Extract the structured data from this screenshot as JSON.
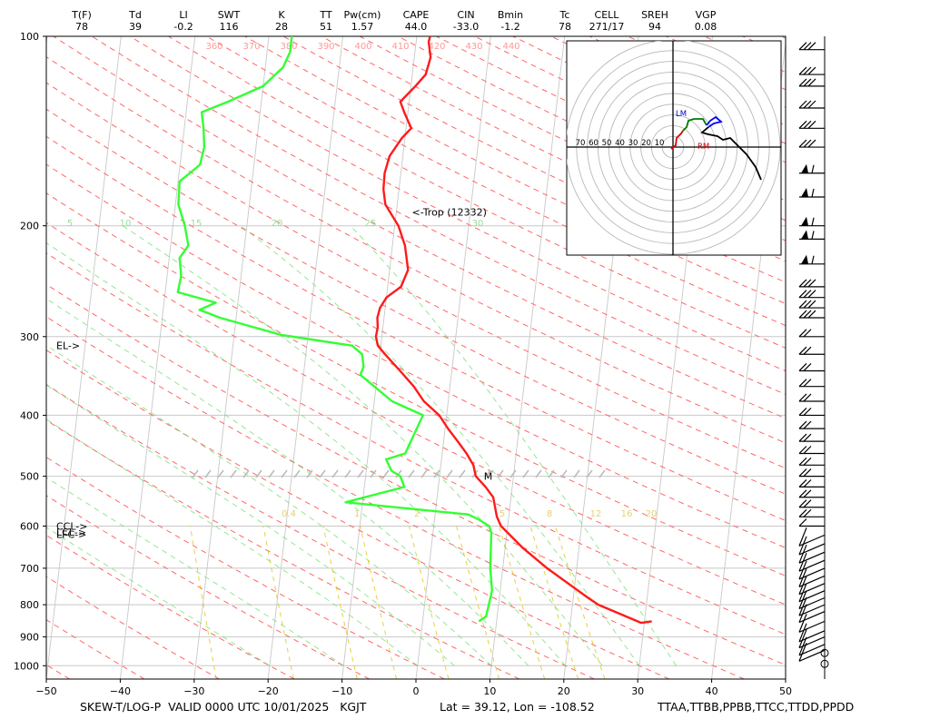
{
  "indices": [
    {
      "label": "T(F)",
      "value": "78"
    },
    {
      "label": "Td",
      "value": "39"
    },
    {
      "label": "LI",
      "value": "-0.2"
    },
    {
      "label": "SWT",
      "value": "116"
    },
    {
      "label": "K",
      "value": "28"
    },
    {
      "label": "TT",
      "value": "51"
    },
    {
      "label": "Pw(cm)",
      "value": "1.57"
    },
    {
      "label": "CAPE",
      "value": "44.0"
    },
    {
      "label": "CIN",
      "value": "-33.0"
    },
    {
      "label": "Bmin",
      "value": "-1.2"
    },
    {
      "label": "Tc",
      "value": "78"
    },
    {
      "label": "CELL",
      "value": "271/17"
    },
    {
      "label": "SREH",
      "value": "94"
    },
    {
      "label": "VGP",
      "value": "0.08"
    }
  ],
  "footer": {
    "left": "SKEW-T/LOG-P  VALID 0000 UTC 10/01/2025   KGJT",
    "location": "Lat = 39.12, Lon = -108.52",
    "sources": "TTAA,TTBB,PPBB,TTCC,TTDD,PPDD"
  },
  "chart_data": {
    "type": "line",
    "title": "",
    "xlabel": "",
    "ylabel": "",
    "xlim": [
      -50,
      50
    ],
    "ylim": [
      1050,
      100
    ],
    "y_scale": "log",
    "grid": true,
    "x_ticks": [
      "-50",
      "-40",
      "-30",
      "-20",
      "-10",
      "0",
      "10",
      "20",
      "30",
      "40",
      "50"
    ],
    "y_ticks": [
      "100",
      "200",
      "300",
      "400",
      "500",
      "600",
      "700",
      "800",
      "900",
      "1000"
    ],
    "series": [
      {
        "id": "temperature",
        "color": "#ff1a1a",
        "points": [
          [
            850,
            31.0
          ],
          [
            855,
            29.6
          ],
          [
            800,
            23.5
          ],
          [
            780,
            22.0
          ],
          [
            700,
            16.0
          ],
          [
            650,
            12.4
          ],
          [
            600,
            9.1
          ],
          [
            580,
            8.4
          ],
          [
            560,
            8.0
          ],
          [
            540,
            7.6
          ],
          [
            520,
            6.4
          ],
          [
            500,
            4.9
          ],
          [
            480,
            4.4
          ],
          [
            460,
            3.3
          ],
          [
            440,
            1.9
          ],
          [
            420,
            0.4
          ],
          [
            400,
            -1.0
          ],
          [
            380,
            -3.3
          ],
          [
            360,
            -4.9
          ],
          [
            340,
            -7.0
          ],
          [
            320,
            -9.3
          ],
          [
            310,
            -10.4
          ],
          [
            300,
            -10.8
          ],
          [
            290,
            -10.7
          ],
          [
            280,
            -10.9
          ],
          [
            270,
            -10.7
          ],
          [
            260,
            -10.0
          ],
          [
            250,
            -8.2
          ],
          [
            235,
            -7.5
          ],
          [
            215,
            -8.3
          ],
          [
            200,
            -9.5
          ],
          [
            185,
            -11.6
          ],
          [
            175,
            -12.1
          ],
          [
            165,
            -12.2
          ],
          [
            155,
            -11.8
          ],
          [
            145,
            -10.4
          ],
          [
            140,
            -9.3
          ],
          [
            132,
            -10.5
          ],
          [
            127,
            -11.2
          ],
          [
            120,
            -9.4
          ],
          [
            115,
            -8.2
          ],
          [
            108,
            -7.8
          ],
          [
            102,
            -8.3
          ],
          [
            100,
            -8.2
          ]
        ]
      },
      {
        "id": "dewpoint",
        "color": "#33ff33",
        "points": [
          [
            850,
            7.6
          ],
          [
            835,
            8.5
          ],
          [
            760,
            8.9
          ],
          [
            700,
            8.3
          ],
          [
            615,
            7.9
          ],
          [
            600,
            7.5
          ],
          [
            585,
            5.9
          ],
          [
            575,
            4.5
          ],
          [
            550,
            -12.3
          ],
          [
            520,
            -4.6
          ],
          [
            500,
            -5.3
          ],
          [
            490,
            -6.6
          ],
          [
            470,
            -7.5
          ],
          [
            460,
            -5.0
          ],
          [
            400,
            -3.2
          ],
          [
            380,
            -7.6
          ],
          [
            345,
            -12.3
          ],
          [
            335,
            -12.0
          ],
          [
            320,
            -12.4
          ],
          [
            310,
            -13.9
          ],
          [
            298,
            -23.7
          ],
          [
            280,
            -32.2
          ],
          [
            272,
            -35.1
          ],
          [
            265,
            -33.0
          ],
          [
            255,
            -38.3
          ],
          [
            240,
            -38.1
          ],
          [
            225,
            -38.6
          ],
          [
            215,
            -37.6
          ],
          [
            200,
            -38.4
          ],
          [
            185,
            -39.6
          ],
          [
            170,
            -39.8
          ],
          [
            160,
            -37.3
          ],
          [
            150,
            -37.0
          ],
          [
            140,
            -37.4
          ],
          [
            132,
            -37.9
          ],
          [
            127,
            -34.5
          ],
          [
            120,
            -30.0
          ],
          [
            112,
            -27.6
          ],
          [
            106,
            -26.9
          ],
          [
            100,
            -26.9
          ]
        ]
      }
    ],
    "annotations": [
      {
        "text": "<-Trop (12332)",
        "p": 190,
        "t": -7.9
      },
      {
        "text": "EL->",
        "p": 310,
        "side": "left"
      },
      {
        "text": "CCL->",
        "p": 600,
        "side": "left"
      },
      {
        "text": "LFC->",
        "p": 618,
        "side": "left"
      },
      {
        "text": "LCL->",
        "p": 613,
        "side": "left"
      },
      {
        "text": "M",
        "p": 500,
        "t": 6.0
      }
    ],
    "theta_labels": [
      "360",
      "370",
      "380",
      "390",
      "400",
      "410",
      "420",
      "430",
      "440"
    ],
    "theta_e_labels": [
      "5",
      "10",
      "15",
      "20",
      "25",
      "30"
    ],
    "mixing_ratio_labels": [
      "0.4",
      "1",
      "2",
      "5",
      "8",
      "12",
      "16",
      "20"
    ],
    "hodograph": {
      "ring_labels": [
        "70",
        "60",
        "50",
        "40",
        "30",
        "20",
        "10"
      ],
      "marker_labels": [
        "LM",
        "RM"
      ],
      "colors": [
        "#e00000",
        "#007a00",
        "#0000ff",
        "#000000"
      ]
    },
    "wind_barbs": {
      "pressures": [
        1000,
        945,
        925,
        900,
        880,
        850,
        820,
        800,
        780,
        760,
        740,
        720,
        700,
        680,
        660,
        640,
        620,
        600,
        580,
        560,
        540,
        520,
        500,
        480,
        460,
        440,
        420,
        400,
        380,
        360,
        340,
        320,
        300,
        280,
        270,
        260,
        250,
        230,
        210,
        200,
        180,
        165,
        150,
        140,
        130,
        120,
        115,
        105
      ]
    }
  }
}
